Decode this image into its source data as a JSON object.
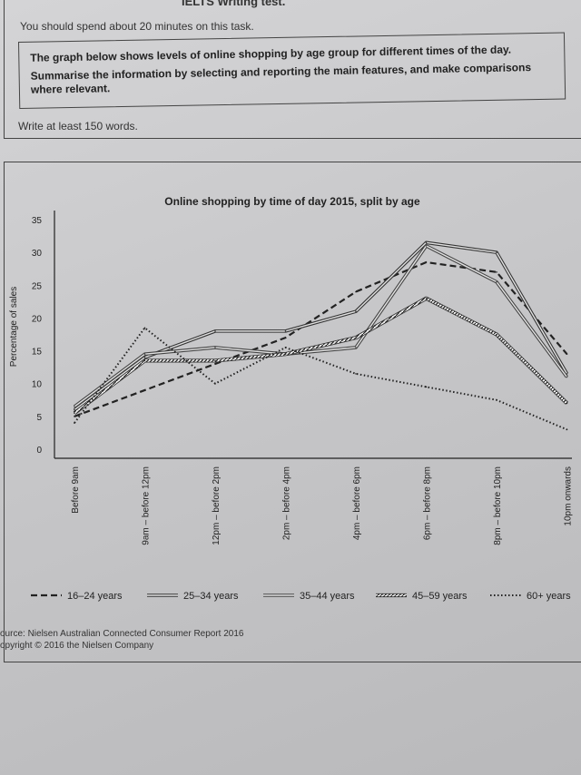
{
  "header": {
    "test_title": "IELTS Writing test.",
    "instruction": "You should spend about 20 minutes on this task.",
    "task_line1": "The graph below shows levels of online shopping by age group for different times of the day.",
    "task_line2": "Summarise the information by selecting and reporting the main features, and make comparisons",
    "task_line3": "where relevant.",
    "word_count": "Write at least 150 words."
  },
  "chart_data": {
    "type": "line",
    "title": "Online shopping by time of day 2015, split by age",
    "xlabel": "",
    "ylabel": "Percentage of sales",
    "ylim": [
      0,
      35
    ],
    "yticks": [
      0,
      5,
      10,
      15,
      20,
      25,
      30,
      35
    ],
    "grid": false,
    "legend_position": "bottom",
    "categories": [
      "Before 9am",
      "9am – before 12pm",
      "12pm – before 2pm",
      "2pm – before 4pm",
      "4pm – before 6pm",
      "6pm – before 8pm",
      "8pm – before 10pm",
      "10pm onwards"
    ],
    "series": [
      {
        "name": "16–24 years",
        "style": "dashed",
        "color": "#222222",
        "values": [
          5,
          9,
          13,
          17,
          24,
          28.5,
          27,
          14.5
        ]
      },
      {
        "name": "25–34 years",
        "style": "double",
        "color": "#333333",
        "values": [
          6,
          14,
          18,
          18,
          21,
          31.5,
          30,
          11.5
        ]
      },
      {
        "name": "35–44 years",
        "style": "double",
        "color": "#444444",
        "values": [
          6.5,
          14.5,
          15.5,
          14.5,
          15.5,
          31,
          25.5,
          11
        ]
      },
      {
        "name": "45–59 years",
        "style": "hatched",
        "color": "#333333",
        "values": [
          5.5,
          13.5,
          13.5,
          14.5,
          17,
          23,
          17.5,
          7
        ]
      },
      {
        "name": "60+ years",
        "style": "dotted",
        "color": "#222222",
        "values": [
          4,
          18.5,
          10,
          15.5,
          11.5,
          9.5,
          7.5,
          3
        ]
      }
    ]
  },
  "footer": {
    "source": "ource: Nielsen Australian Connected Consumer Report 2016",
    "copyright": "opyright © 2016 the Nielsen Company"
  }
}
